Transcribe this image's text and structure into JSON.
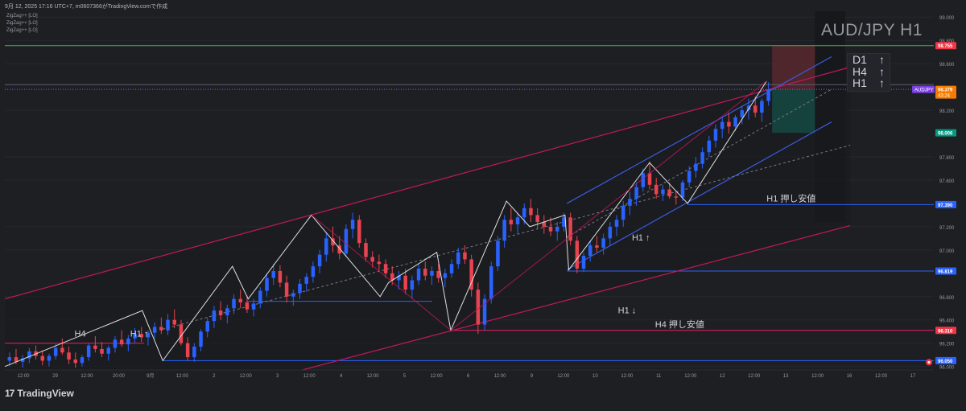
{
  "header": {
    "info": "9月 12, 2025 17:16 UTC+7, m0607366がTradingView.comで作成",
    "indicators": [
      "ZigZag++ [LO]",
      "ZigZag++ [LO]",
      "ZigZag++ [LO]"
    ]
  },
  "symbol_title": "AUD/JPY H1",
  "trend_panel": [
    {
      "tf": "D1",
      "arrow": "↑"
    },
    {
      "tf": "H4",
      "arrow": "↑"
    },
    {
      "tf": "H1",
      "arrow": "↑"
    }
  ],
  "footer": {
    "brand": "TradingView",
    "logo": "17"
  },
  "colors": {
    "background": "#1e1f23",
    "bull": "#2962ff",
    "bear": "#e84350",
    "channel_red": "#c2185b",
    "channel_blue": "#3b5bdb",
    "support_blue": "#2a5cd6",
    "green_line": "#4caf50",
    "price_badge": "#f57c00",
    "symbol_badge": "#7b3fe4"
  },
  "chart_data": {
    "type": "candlestick",
    "title": "AUD/JPY H1",
    "ylim": [
      95.97,
      99.05
    ],
    "y_ticks": [
      {
        "v": 99.0,
        "label": "99.000"
      },
      {
        "v": 98.8,
        "label": "98.800"
      },
      {
        "v": 98.6,
        "label": "98.600"
      },
      {
        "v": 98.2,
        "label": "98.200"
      },
      {
        "v": 97.8,
        "label": "97.800"
      },
      {
        "v": 97.6,
        "label": "97.600"
      },
      {
        "v": 97.2,
        "label": "97.200"
      },
      {
        "v": 97.0,
        "label": "97.000"
      },
      {
        "v": 96.6,
        "label": "96.600"
      },
      {
        "v": 96.4,
        "label": "96.400"
      },
      {
        "v": 96.2,
        "label": "96.200"
      },
      {
        "v": 96.0,
        "label": "96.000"
      }
    ],
    "x_ticks": [
      "12:00",
      "29",
      "12:00",
      "20:00",
      "9月",
      "12:00",
      "2",
      "12:00",
      "3",
      "12:00",
      "4",
      "12:00",
      "5",
      "12:00",
      "6",
      "12:00",
      "9",
      "12:00",
      "10",
      "12:00",
      "11",
      "12:00",
      "12",
      "12:00",
      "13",
      "12:00",
      "16",
      "12:00",
      "17"
    ],
    "price_badges": [
      {
        "label": "98.755",
        "v": 98.755,
        "color": "#f23645"
      },
      {
        "label": "98.379",
        "sub": "43:24",
        "v": 98.379,
        "color": "#f57c00"
      },
      {
        "label": "98.006",
        "v": 98.006,
        "color": "#089981"
      },
      {
        "label": "97.390",
        "v": 97.39,
        "color": "#2962ff"
      },
      {
        "label": "96.819",
        "v": 96.819,
        "color": "#2962ff"
      },
      {
        "label": "96.310",
        "v": 96.31,
        "color": "#f23645"
      },
      {
        "label": "96.050",
        "v": 96.05,
        "color": "#2962ff"
      }
    ],
    "symbol_badge": {
      "label": "AUDJPY",
      "v": 98.379
    },
    "annotations": [
      {
        "text": "H4",
        "x": 0.075,
        "v": 96.23
      },
      {
        "text": "H1 ↑",
        "x": 0.135,
        "v": 96.23
      },
      {
        "text": "H1 ↑",
        "x": 0.675,
        "v": 97.055
      },
      {
        "text": "H1 ↓",
        "x": 0.66,
        "v": 96.43
      },
      {
        "text": "H1 押し安値",
        "x": 0.82,
        "v": 97.39
      },
      {
        "text": "H4  押し安値",
        "x": 0.7,
        "v": 96.31
      }
    ],
    "horizontal_lines": [
      {
        "v": 98.755,
        "color": "#4caf50",
        "x0": 0.0,
        "x1": 1.0,
        "style": "solid"
      },
      {
        "v": 98.379,
        "color": "#7b61ff",
        "x0": 0.0,
        "x1": 1.0,
        "style": "dotted"
      },
      {
        "v": 98.42,
        "color": "#5d606b",
        "x0": 0.0,
        "x1": 1.0,
        "style": "solid"
      },
      {
        "v": 97.39,
        "color": "#2962ff",
        "x0": 0.735,
        "x1": 1.0,
        "style": "solid"
      },
      {
        "v": 96.819,
        "color": "#2962ff",
        "x0": 0.605,
        "x1": 1.0,
        "style": "solid"
      },
      {
        "v": 96.31,
        "color": "#e91e63",
        "x0": 0.48,
        "x1": 1.0,
        "style": "solid"
      },
      {
        "v": 96.05,
        "color": "#2962ff",
        "x0": 0.17,
        "x1": 1.0,
        "style": "solid"
      },
      {
        "v": 96.56,
        "color": "#2962ff",
        "x0": 0.26,
        "x1": 0.46,
        "style": "solid"
      },
      {
        "v": 96.2,
        "color": "#e91e63",
        "x0": 0.0,
        "x1": 0.15,
        "style": "solid"
      }
    ],
    "zigzag_h1": [
      [
        0.0,
        96.0
      ],
      [
        0.148,
        96.48
      ],
      [
        0.17,
        96.05
      ],
      [
        0.245,
        96.86
      ],
      [
        0.262,
        96.58
      ],
      [
        0.33,
        97.3
      ],
      [
        0.404,
        96.6
      ],
      [
        0.413,
        96.72
      ],
      [
        0.465,
        96.98
      ],
      [
        0.48,
        96.31
      ],
      [
        0.54,
        97.42
      ],
      [
        0.565,
        97.2
      ],
      [
        0.603,
        97.3
      ],
      [
        0.607,
        96.83
      ],
      [
        0.694,
        97.75
      ],
      [
        0.735,
        97.4
      ],
      [
        0.82,
        98.45
      ]
    ],
    "zigzag_h4": [
      [
        0.33,
        97.3
      ],
      [
        0.48,
        96.31
      ],
      [
        0.82,
        98.45
      ]
    ],
    "channels": [
      {
        "color": "#c2185b",
        "lines": [
          [
            [
              0.0,
              96.58
            ],
            [
              0.91,
              98.57
            ]
          ],
          [
            [
              0.32,
              95.97
            ],
            [
              0.91,
              97.21
            ]
          ]
        ]
      },
      {
        "color": "#3b5bdb",
        "lines": [
          [
            [
              0.605,
              97.4
            ],
            [
              0.89,
              98.66
            ]
          ],
          [
            [
              0.605,
              96.83
            ],
            [
              0.89,
              98.1
            ]
          ]
        ]
      }
    ],
    "candles_ohlc": [
      [
        96.05,
        96.12,
        96.0,
        96.08
      ],
      [
        96.08,
        96.15,
        96.02,
        96.04
      ],
      [
        96.04,
        96.1,
        95.99,
        96.07
      ],
      [
        96.07,
        96.16,
        96.03,
        96.13
      ],
      [
        96.13,
        96.18,
        96.06,
        96.09
      ],
      [
        96.09,
        96.14,
        96.01,
        96.05
      ],
      [
        96.05,
        96.11,
        96.0,
        96.09
      ],
      [
        96.09,
        96.19,
        96.06,
        96.16
      ],
      [
        96.16,
        96.24,
        96.1,
        96.12
      ],
      [
        96.12,
        96.17,
        96.02,
        96.06
      ],
      [
        96.06,
        96.12,
        95.99,
        96.03
      ],
      [
        96.03,
        96.1,
        96.0,
        96.08
      ],
      [
        96.08,
        96.2,
        96.05,
        96.18
      ],
      [
        96.18,
        96.26,
        96.12,
        96.15
      ],
      [
        96.15,
        96.21,
        96.08,
        96.11
      ],
      [
        96.11,
        96.18,
        96.05,
        96.16
      ],
      [
        96.16,
        96.26,
        96.12,
        96.23
      ],
      [
        96.23,
        96.31,
        96.17,
        96.19
      ],
      [
        96.19,
        96.27,
        96.13,
        96.24
      ],
      [
        96.24,
        96.33,
        96.2,
        96.28
      ],
      [
        96.28,
        96.34,
        96.21,
        96.25
      ],
      [
        96.25,
        96.31,
        96.18,
        96.29
      ],
      [
        96.29,
        96.38,
        96.24,
        96.34
      ],
      [
        96.34,
        96.42,
        96.28,
        96.31
      ],
      [
        96.31,
        96.45,
        96.27,
        96.4
      ],
      [
        96.4,
        96.49,
        96.33,
        96.36
      ],
      [
        96.36,
        96.4,
        96.18,
        96.2
      ],
      [
        96.2,
        96.25,
        96.05,
        96.08
      ],
      [
        96.08,
        96.2,
        96.04,
        96.17
      ],
      [
        96.17,
        96.32,
        96.13,
        96.3
      ],
      [
        96.3,
        96.42,
        96.25,
        96.39
      ],
      [
        96.39,
        96.52,
        96.33,
        96.48
      ],
      [
        96.48,
        96.56,
        96.4,
        96.44
      ],
      [
        96.44,
        96.53,
        96.37,
        96.5
      ],
      [
        96.5,
        96.62,
        96.45,
        96.58
      ],
      [
        96.58,
        96.66,
        96.5,
        96.55
      ],
      [
        96.55,
        96.61,
        96.46,
        96.49
      ],
      [
        96.49,
        96.58,
        96.43,
        96.54
      ],
      [
        96.54,
        96.68,
        96.5,
        96.65
      ],
      [
        96.65,
        96.8,
        96.6,
        96.76
      ],
      [
        96.76,
        96.88,
        96.7,
        96.82
      ],
      [
        96.82,
        96.87,
        96.68,
        96.72
      ],
      [
        96.72,
        96.78,
        96.55,
        96.6
      ],
      [
        96.6,
        96.66,
        96.52,
        96.63
      ],
      [
        96.63,
        96.75,
        96.58,
        96.71
      ],
      [
        96.71,
        96.8,
        96.64,
        96.77
      ],
      [
        96.77,
        96.9,
        96.72,
        96.86
      ],
      [
        96.86,
        97.0,
        96.8,
        96.96
      ],
      [
        96.96,
        97.15,
        96.9,
        97.1
      ],
      [
        97.1,
        97.2,
        96.98,
        97.04
      ],
      [
        97.04,
        97.12,
        96.92,
        96.97
      ],
      [
        96.97,
        97.22,
        96.94,
        97.18
      ],
      [
        97.18,
        97.32,
        97.1,
        97.26
      ],
      [
        97.26,
        97.3,
        97.02,
        97.06
      ],
      [
        97.06,
        97.1,
        96.9,
        96.94
      ],
      [
        96.94,
        96.99,
        96.85,
        96.9
      ],
      [
        96.9,
        96.96,
        96.82,
        96.88
      ],
      [
        96.88,
        96.92,
        96.76,
        96.8
      ],
      [
        96.8,
        96.86,
        96.7,
        96.74
      ],
      [
        96.74,
        96.82,
        96.66,
        96.78
      ],
      [
        96.78,
        96.84,
        96.62,
        96.66
      ],
      [
        96.66,
        96.78,
        96.58,
        96.74
      ],
      [
        96.74,
        96.88,
        96.7,
        96.84
      ],
      [
        96.84,
        96.9,
        96.74,
        96.78
      ],
      [
        96.78,
        96.86,
        96.7,
        96.82
      ],
      [
        96.82,
        96.88,
        96.72,
        96.76
      ],
      [
        96.76,
        96.84,
        96.68,
        96.8
      ],
      [
        96.8,
        96.92,
        96.76,
        96.88
      ],
      [
        96.88,
        97.02,
        96.84,
        96.98
      ],
      [
        96.98,
        97.04,
        96.88,
        96.92
      ],
      [
        96.92,
        96.96,
        96.6,
        96.66
      ],
      [
        96.66,
        96.72,
        96.28,
        96.36
      ],
      [
        96.36,
        96.62,
        96.31,
        96.58
      ],
      [
        96.58,
        96.9,
        96.54,
        96.86
      ],
      [
        96.86,
        97.12,
        96.82,
        97.08
      ],
      [
        97.08,
        97.3,
        97.02,
        97.26
      ],
      [
        97.26,
        97.36,
        97.16,
        97.22
      ],
      [
        97.22,
        97.32,
        97.14,
        97.28
      ],
      [
        97.28,
        97.4,
        97.22,
        97.36
      ],
      [
        97.36,
        97.44,
        97.24,
        97.3
      ],
      [
        97.3,
        97.36,
        97.18,
        97.24
      ],
      [
        97.24,
        97.3,
        97.14,
        97.2
      ],
      [
        97.2,
        97.28,
        97.12,
        97.16
      ],
      [
        97.16,
        97.24,
        97.08,
        97.2
      ],
      [
        97.2,
        97.32,
        97.16,
        97.28
      ],
      [
        97.28,
        97.32,
        97.04,
        97.08
      ],
      [
        97.08,
        97.12,
        96.8,
        96.84
      ],
      [
        96.84,
        96.98,
        96.81,
        96.95
      ],
      [
        96.95,
        97.08,
        96.9,
        97.04
      ],
      [
        97.04,
        97.12,
        96.98,
        97.02
      ],
      [
        97.02,
        97.14,
        96.96,
        97.1
      ],
      [
        97.1,
        97.24,
        97.04,
        97.2
      ],
      [
        97.2,
        97.3,
        97.12,
        97.26
      ],
      [
        97.26,
        97.42,
        97.2,
        97.38
      ],
      [
        97.38,
        97.5,
        97.3,
        97.44
      ],
      [
        97.44,
        97.58,
        97.38,
        97.54
      ],
      [
        97.54,
        97.7,
        97.5,
        97.66
      ],
      [
        97.66,
        97.76,
        97.52,
        97.56
      ],
      [
        97.56,
        97.62,
        97.44,
        97.48
      ],
      [
        97.48,
        97.56,
        97.42,
        97.52
      ],
      [
        97.52,
        97.58,
        97.44,
        97.46
      ],
      [
        97.46,
        97.5,
        97.39,
        97.45
      ],
      [
        97.45,
        97.6,
        97.42,
        97.58
      ],
      [
        97.58,
        97.72,
        97.54,
        97.68
      ],
      [
        97.68,
        97.8,
        97.62,
        97.74
      ],
      [
        97.74,
        97.88,
        97.7,
        97.84
      ],
      [
        97.84,
        97.98,
        97.8,
        97.94
      ],
      [
        97.94,
        98.08,
        97.88,
        98.04
      ],
      [
        98.04,
        98.14,
        97.96,
        98.1
      ],
      [
        98.1,
        98.18,
        98.0,
        98.06
      ],
      [
        98.06,
        98.16,
        98.02,
        98.14
      ],
      [
        98.14,
        98.24,
        98.08,
        98.2
      ],
      [
        98.2,
        98.3,
        98.12,
        98.24
      ],
      [
        98.24,
        98.32,
        98.14,
        98.18
      ],
      [
        98.18,
        98.3,
        98.1,
        98.28
      ],
      [
        98.28,
        98.44,
        98.24,
        98.38
      ]
    ],
    "position": {
      "entry": 98.379,
      "stop": 98.755,
      "target": 98.006,
      "x0": 0.826,
      "x1": 0.872
    },
    "right_panel_x": 0.872
  }
}
